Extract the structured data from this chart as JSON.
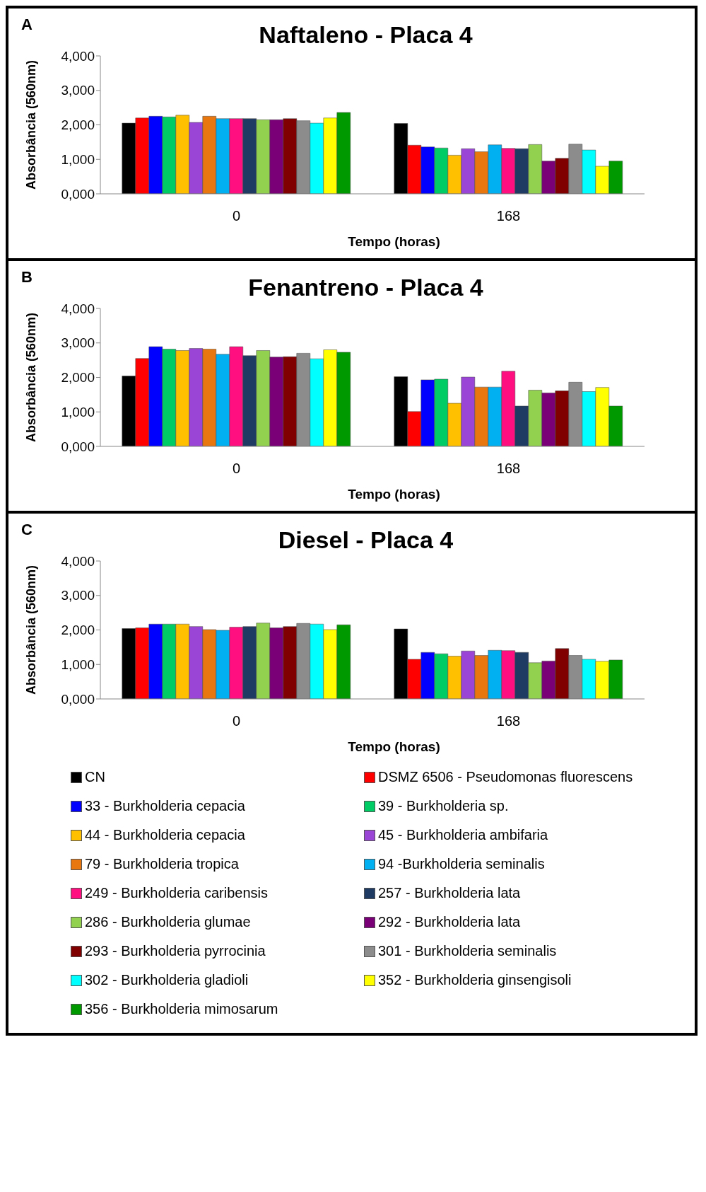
{
  "chart_data": [
    {
      "type": "bar",
      "title": "Naftaleno - Placa 4",
      "xlabel": "Tempo (horas)",
      "ylabel": "Absorbância (560nm)",
      "annotations": [
        "A"
      ],
      "categories": [
        "0",
        "168"
      ],
      "ylim": [
        0,
        4
      ],
      "yticks": [
        {
          "value": 0,
          "label": "0,000"
        },
        {
          "value": 1,
          "label": "1,000"
        },
        {
          "value": 2,
          "label": "2,000"
        },
        {
          "value": 3,
          "label": "3,000"
        },
        {
          "value": 4,
          "label": "4,000"
        }
      ],
      "grid": false,
      "legend": false,
      "series": [
        {
          "color": "#000000",
          "values": [
            2.05,
            2.04
          ]
        },
        {
          "color": "#ff0000",
          "values": [
            2.2,
            1.41
          ]
        },
        {
          "color": "#0000ff",
          "values": [
            2.25,
            1.36
          ]
        },
        {
          "color": "#00cc66",
          "values": [
            2.23,
            1.33
          ]
        },
        {
          "color": "#ffc000",
          "values": [
            2.28,
            1.12
          ]
        },
        {
          "color": "#9a45d6",
          "values": [
            2.07,
            1.31
          ]
        },
        {
          "color": "#e8770f",
          "values": [
            2.25,
            1.22
          ]
        },
        {
          "color": "#00b0f0",
          "values": [
            2.18,
            1.42
          ]
        },
        {
          "color": "#ff0f80",
          "values": [
            2.18,
            1.32
          ]
        },
        {
          "color": "#1f3b64",
          "values": [
            2.18,
            1.31
          ]
        },
        {
          "color": "#92d050",
          "values": [
            2.15,
            1.43
          ]
        },
        {
          "color": "#7a0077",
          "values": [
            2.15,
            0.95
          ]
        },
        {
          "color": "#800000",
          "values": [
            2.18,
            1.03
          ]
        },
        {
          "color": "#8c8c8c",
          "values": [
            2.12,
            1.44
          ]
        },
        {
          "color": "#00ffff",
          "values": [
            2.05,
            1.27
          ]
        },
        {
          "color": "#ffff00",
          "values": [
            2.2,
            0.8
          ]
        },
        {
          "color": "#009900",
          "values": [
            2.36,
            0.95
          ]
        }
      ]
    },
    {
      "type": "bar",
      "title": "Fenantreno - Placa 4",
      "xlabel": "Tempo (horas)",
      "ylabel": "Absorbância (560nm)",
      "annotations": [
        "B"
      ],
      "categories": [
        "0",
        "168"
      ],
      "ylim": [
        0,
        4
      ],
      "yticks": [
        {
          "value": 0,
          "label": "0,000"
        },
        {
          "value": 1,
          "label": "1,000"
        },
        {
          "value": 2,
          "label": "2,000"
        },
        {
          "value": 3,
          "label": "3,000"
        },
        {
          "value": 4,
          "label": "4,000"
        }
      ],
      "grid": false,
      "legend": false,
      "series": [
        {
          "color": "#000000",
          "values": [
            2.04,
            2.02
          ]
        },
        {
          "color": "#ff0000",
          "values": [
            2.55,
            1.01
          ]
        },
        {
          "color": "#0000ff",
          "values": [
            2.89,
            1.93
          ]
        },
        {
          "color": "#00cc66",
          "values": [
            2.82,
            1.95
          ]
        },
        {
          "color": "#ffc000",
          "values": [
            2.78,
            1.25
          ]
        },
        {
          "color": "#9a45d6",
          "values": [
            2.84,
            2.01
          ]
        },
        {
          "color": "#e8770f",
          "values": [
            2.82,
            1.72
          ]
        },
        {
          "color": "#00b0f0",
          "values": [
            2.67,
            1.72
          ]
        },
        {
          "color": "#ff0f80",
          "values": [
            2.89,
            2.18
          ]
        },
        {
          "color": "#1f3b64",
          "values": [
            2.63,
            1.17
          ]
        },
        {
          "color": "#92d050",
          "values": [
            2.78,
            1.63
          ]
        },
        {
          "color": "#7a0077",
          "values": [
            2.59,
            1.55
          ]
        },
        {
          "color": "#800000",
          "values": [
            2.6,
            1.61
          ]
        },
        {
          "color": "#8c8c8c",
          "values": [
            2.7,
            1.86
          ]
        },
        {
          "color": "#00ffff",
          "values": [
            2.54,
            1.59
          ]
        },
        {
          "color": "#ffff00",
          "values": [
            2.8,
            1.71
          ]
        },
        {
          "color": "#009900",
          "values": [
            2.73,
            1.17
          ]
        }
      ]
    },
    {
      "type": "bar",
      "title": "Diesel - Placa 4",
      "xlabel": "Tempo (horas)",
      "ylabel": "Absorbância (560nm)",
      "annotations": [
        "C"
      ],
      "categories": [
        "0",
        "168"
      ],
      "ylim": [
        0,
        4
      ],
      "yticks": [
        {
          "value": 0,
          "label": "0,000"
        },
        {
          "value": 1,
          "label": "1,000"
        },
        {
          "value": 2,
          "label": "2,000"
        },
        {
          "value": 3,
          "label": "3,000"
        },
        {
          "value": 4,
          "label": "4,000"
        }
      ],
      "grid": false,
      "legend": "bottom",
      "series": [
        {
          "name": "CN",
          "color": "#000000",
          "values": [
            2.04,
            2.03
          ]
        },
        {
          "name": "DSMZ 6506 - Pseudomonas fluorescens",
          "color": "#ff0000",
          "values": [
            2.06,
            1.15
          ]
        },
        {
          "name": "33 - Burkholderia cepacia",
          "color": "#0000ff",
          "values": [
            2.17,
            1.35
          ]
        },
        {
          "name": "39 - Burkholderia sp.",
          "color": "#00cc66",
          "values": [
            2.17,
            1.31
          ]
        },
        {
          "name": "44 - Burkholderia cepacia",
          "color": "#ffc000",
          "values": [
            2.17,
            1.24
          ]
        },
        {
          "name": "45 - Burkholderia ambifaria",
          "color": "#9a45d6",
          "values": [
            2.1,
            1.39
          ]
        },
        {
          "name": "79 - Burkholderia tropica",
          "color": "#e8770f",
          "values": [
            2.01,
            1.26
          ]
        },
        {
          "name": "94 -Burkholderia seminalis",
          "color": "#00b0f0",
          "values": [
            1.99,
            1.41
          ]
        },
        {
          "name": "249 - Burkholderia caribensis",
          "color": "#ff0f80",
          "values": [
            2.08,
            1.4
          ]
        },
        {
          "name": "257 - Burkholderia lata",
          "color": "#1f3b64",
          "values": [
            2.1,
            1.35
          ]
        },
        {
          "name": "286 - Burkholderia glumae",
          "color": "#92d050",
          "values": [
            2.2,
            1.05
          ]
        },
        {
          "name": "292 - Burkholderia lata",
          "color": "#7a0077",
          "values": [
            2.06,
            1.1
          ]
        },
        {
          "name": "293 - Burkholderia pyrrocinia",
          "color": "#800000",
          "values": [
            2.1,
            1.46
          ]
        },
        {
          "name": "301 - Burkholderia seminalis",
          "color": "#8c8c8c",
          "values": [
            2.19,
            1.26
          ]
        },
        {
          "name": "302 - Burkholderia gladioli",
          "color": "#00ffff",
          "values": [
            2.17,
            1.15
          ]
        },
        {
          "name": "352 - Burkholderia ginsengisoli",
          "color": "#ffff00",
          "values": [
            2.01,
            1.09
          ]
        },
        {
          "name": "356 - Burkholderia mimosarum",
          "color": "#009900",
          "values": [
            2.15,
            1.13
          ]
        }
      ]
    }
  ]
}
